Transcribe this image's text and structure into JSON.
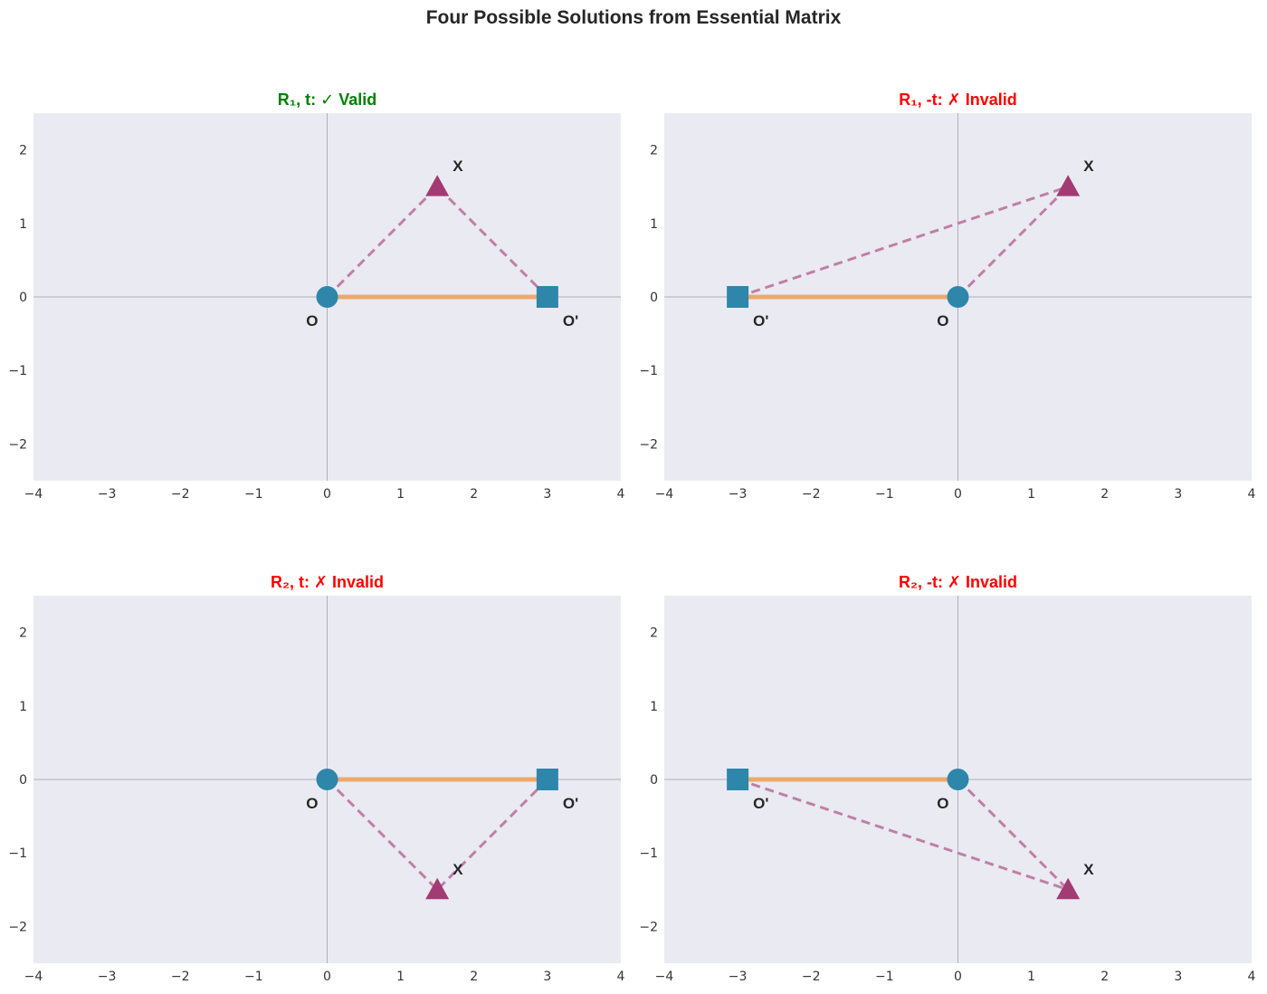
{
  "title": "Four Possible Solutions from Essential Matrix",
  "chart_data": [
    {
      "type": "scatter",
      "title": "R₁, t: ✓ Valid",
      "status": "valid",
      "xlim": [
        -4,
        4
      ],
      "ylim": [
        -2.5,
        2.5
      ],
      "xticks": [
        -4,
        -3,
        -2,
        -1,
        0,
        1,
        2,
        3,
        4
      ],
      "yticks": [
        -2,
        -1,
        0,
        1,
        2
      ],
      "grid": true,
      "points": [
        {
          "label": "O",
          "x": 0,
          "y": 0,
          "marker": "circle"
        },
        {
          "label": "O'",
          "x": 3,
          "y": 0,
          "marker": "square"
        },
        {
          "label": "X",
          "x": 1.5,
          "y": 1.5,
          "marker": "triangle"
        }
      ],
      "baseline": {
        "from": [
          0,
          0
        ],
        "to": [
          3,
          0
        ]
      },
      "rays": [
        {
          "from": [
            0,
            0
          ],
          "to": [
            1.5,
            1.5
          ]
        },
        {
          "from": [
            3,
            0
          ],
          "to": [
            1.5,
            1.5
          ]
        }
      ]
    },
    {
      "type": "scatter",
      "title": "R₁, -t: ✗ Invalid",
      "status": "invalid",
      "xlim": [
        -4,
        4
      ],
      "ylim": [
        -2.5,
        2.5
      ],
      "xticks": [
        -4,
        -3,
        -2,
        -1,
        0,
        1,
        2,
        3,
        4
      ],
      "yticks": [
        -2,
        -1,
        0,
        1,
        2
      ],
      "grid": true,
      "points": [
        {
          "label": "O",
          "x": 0,
          "y": 0,
          "marker": "circle"
        },
        {
          "label": "O'",
          "x": -3,
          "y": 0,
          "marker": "square"
        },
        {
          "label": "X",
          "x": 1.5,
          "y": 1.5,
          "marker": "triangle"
        }
      ],
      "baseline": {
        "from": [
          0,
          0
        ],
        "to": [
          -3,
          0
        ]
      },
      "rays": [
        {
          "from": [
            0,
            0
          ],
          "to": [
            1.5,
            1.5
          ]
        },
        {
          "from": [
            -3,
            0
          ],
          "to": [
            1.5,
            1.5
          ]
        }
      ]
    },
    {
      "type": "scatter",
      "title": "R₂, t: ✗ Invalid",
      "status": "invalid",
      "xlim": [
        -4,
        4
      ],
      "ylim": [
        -2.5,
        2.5
      ],
      "xticks": [
        -4,
        -3,
        -2,
        -1,
        0,
        1,
        2,
        3,
        4
      ],
      "yticks": [
        -2,
        -1,
        0,
        1,
        2
      ],
      "grid": true,
      "points": [
        {
          "label": "O",
          "x": 0,
          "y": 0,
          "marker": "circle"
        },
        {
          "label": "O'",
          "x": 3,
          "y": 0,
          "marker": "square"
        },
        {
          "label": "X",
          "x": 1.5,
          "y": -1.5,
          "marker": "triangle"
        }
      ],
      "baseline": {
        "from": [
          0,
          0
        ],
        "to": [
          3,
          0
        ]
      },
      "rays": [
        {
          "from": [
            0,
            0
          ],
          "to": [
            1.5,
            -1.5
          ]
        },
        {
          "from": [
            3,
            0
          ],
          "to": [
            1.5,
            -1.5
          ]
        }
      ]
    },
    {
      "type": "scatter",
      "title": "R₂, -t: ✗ Invalid",
      "status": "invalid",
      "xlim": [
        -4,
        4
      ],
      "ylim": [
        -2.5,
        2.5
      ],
      "xticks": [
        -4,
        -3,
        -2,
        -1,
        0,
        1,
        2,
        3,
        4
      ],
      "yticks": [
        -2,
        -1,
        0,
        1,
        2
      ],
      "grid": true,
      "points": [
        {
          "label": "O",
          "x": 0,
          "y": 0,
          "marker": "circle"
        },
        {
          "label": "O'",
          "x": -3,
          "y": 0,
          "marker": "square"
        },
        {
          "label": "X",
          "x": 1.5,
          "y": -1.5,
          "marker": "triangle"
        }
      ],
      "baseline": {
        "from": [
          0,
          0
        ],
        "to": [
          -3,
          0
        ]
      },
      "rays": [
        {
          "from": [
            0,
            0
          ],
          "to": [
            1.5,
            -1.5
          ]
        },
        {
          "from": [
            -3,
            0
          ],
          "to": [
            1.5,
            -1.5
          ]
        }
      ]
    }
  ],
  "colors": {
    "valid": "#008000",
    "invalid": "#ff0000",
    "camera": "#2e86ab",
    "point": "#a23b72",
    "ray": "#c07fa6",
    "baseline": "#f0a35e",
    "background": "#eaeaf2",
    "axis_line": "#b0b0b8"
  }
}
